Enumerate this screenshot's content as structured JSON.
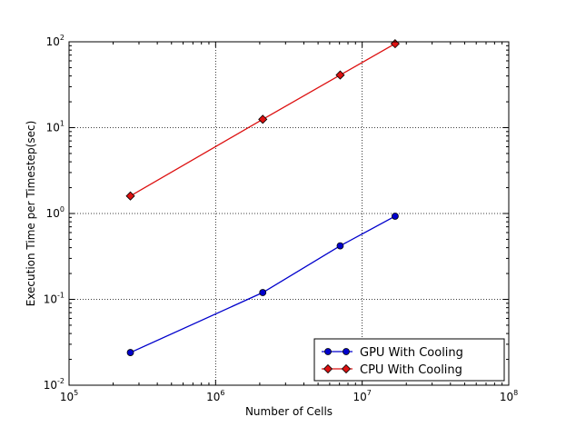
{
  "chart_data": {
    "type": "line",
    "xlabel": "Number of Cells",
    "ylabel": "Execution Time per Timestep(sec)",
    "xscale": "log",
    "yscale": "log",
    "xlim": [
      100000,
      100000000
    ],
    "ylim": [
      0.01,
      100
    ],
    "x_ticks": [
      {
        "value": 100000,
        "base": "10",
        "exp": "5"
      },
      {
        "value": 1000000,
        "base": "10",
        "exp": "6"
      },
      {
        "value": 10000000,
        "base": "10",
        "exp": "7"
      },
      {
        "value": 100000000,
        "base": "10",
        "exp": "8"
      }
    ],
    "y_ticks": [
      {
        "value": 0.01,
        "base": "10",
        "exp": "-2"
      },
      {
        "value": 0.1,
        "base": "10",
        "exp": "-1"
      },
      {
        "value": 1,
        "base": "10",
        "exp": "0"
      },
      {
        "value": 10,
        "base": "10",
        "exp": "1"
      },
      {
        "value": 100,
        "base": "10",
        "exp": "2"
      }
    ],
    "grid": true,
    "legend_position": "bottom-right",
    "series": [
      {
        "name": "GPU With Cooling",
        "color": "#0000cc",
        "marker": "circle",
        "x": [
          262144,
          2097152,
          7077888,
          16777216
        ],
        "y": [
          0.024,
          0.12,
          0.42,
          0.93
        ]
      },
      {
        "name": "CPU With Cooling",
        "color": "#dd1111",
        "marker": "diamond",
        "x": [
          262144,
          2097152,
          7077888,
          16777216
        ],
        "y": [
          1.6,
          12.5,
          41,
          95
        ]
      }
    ]
  }
}
